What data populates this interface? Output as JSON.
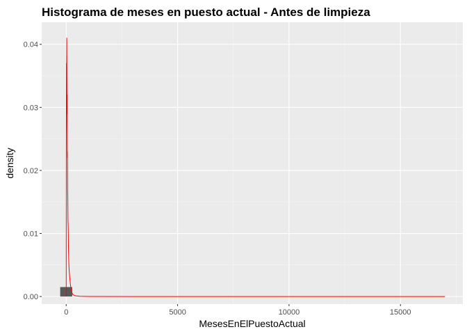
{
  "chart_data": {
    "type": "histogram",
    "title": "Histograma de meses en puesto actual - Antes de limpieza",
    "xlabel": "MesesEnElPuestoActual",
    "ylabel": "density",
    "xlim": [
      -1100,
      17800
    ],
    "ylim": [
      -0.0012,
      0.0435
    ],
    "x_ticks": [
      0,
      5000,
      10000,
      15000
    ],
    "x_tick_labels": [
      "0",
      "5000",
      "10000",
      "15000"
    ],
    "y_ticks": [
      0.0,
      0.01,
      0.02,
      0.03,
      0.04
    ],
    "y_tick_labels": [
      "0.00",
      "0.01",
      "0.02",
      "0.03",
      "0.04"
    ],
    "grid": true,
    "background": "#ebebeb",
    "bar_color": "#595959",
    "density_color": "#ff0000",
    "bars": [
      {
        "x0": -270,
        "x1": 270,
        "density": 0.0015
      }
    ],
    "density_curve": {
      "x": [
        0,
        5,
        10,
        15,
        20,
        25,
        30,
        35,
        40,
        45,
        50,
        55,
        60,
        65,
        70,
        80,
        90,
        100,
        110,
        120,
        140,
        160,
        180,
        200,
        230,
        260,
        300,
        400,
        600,
        1000,
        3000,
        8000,
        12000,
        17000
      ],
      "y": [
        0.0,
        0.024,
        0.037,
        0.031,
        0.037,
        0.041,
        0.036,
        0.029,
        0.032,
        0.027,
        0.026,
        0.022,
        0.023,
        0.017,
        0.016,
        0.012,
        0.011,
        0.008,
        0.0065,
        0.005,
        0.0038,
        0.003,
        0.0022,
        0.0016,
        0.001,
        0.0006,
        0.0003,
        0.00012,
        4e-05,
        1e-05,
        0.0,
        0.0,
        0.0,
        0.0
      ]
    }
  }
}
